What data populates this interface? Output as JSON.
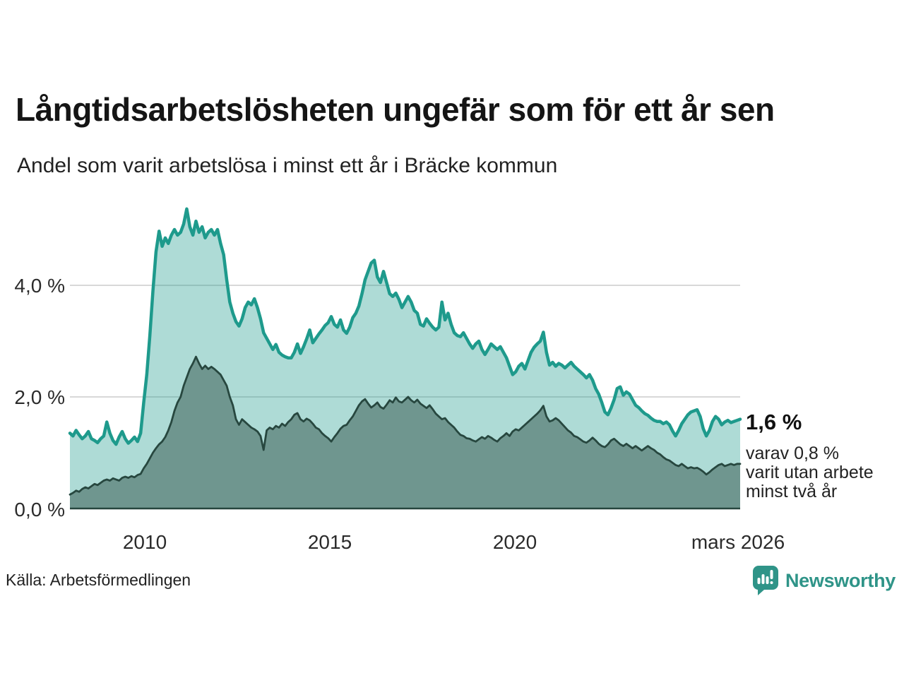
{
  "page": {
    "title": "Långtidsarbetslösheten ungefär som för ett år sen",
    "subtitle": "Andel som varit arbetslösa i minst ett år i Bräcke kommun"
  },
  "annotation": {
    "value_label": "1,6 %",
    "sub_lines": [
      "varav 0,8 %",
      "varit utan arbete",
      "minst två år"
    ]
  },
  "footer": {
    "source": "Källa: Arbetsförmedlingen",
    "brand": "Newsworthy"
  },
  "colors": {
    "line_one_year": "#1e9a8c",
    "fill_one_year": "rgba(30,154,140,0.36)",
    "line_two_year": "#27473f",
    "fill_two_year": "#6f968f",
    "gridline": "#d8d8d8",
    "axis_line": "#27473f",
    "brand_teal": "#2f9488"
  },
  "chart_data": {
    "type": "area",
    "title": "Långtidsarbetslösheten ungefär som för ett år sen",
    "subtitle": "Andel som varit arbetslösa i minst ett år i Bräcke kommun",
    "interval": "monthly",
    "x_start": "2008-01",
    "x_end": "2026-03",
    "ylim": [
      0,
      5.6
    ],
    "grid_values": [
      2.0,
      4.0
    ],
    "y_ticks": [
      {
        "value": 0.0,
        "label": "0,0 %"
      },
      {
        "value": 2.0,
        "label": "2,0 %"
      },
      {
        "value": 4.0,
        "label": "4,0 %"
      }
    ],
    "x_ticks": [
      {
        "year": 2010.0,
        "label": "2010"
      },
      {
        "year": 2015.0,
        "label": "2015"
      },
      {
        "year": 2020.0,
        "label": "2020"
      },
      {
        "year": 2026.17,
        "label": "mars 2026"
      }
    ],
    "legend_position": "end-of-line annotation",
    "grid": true,
    "series": [
      {
        "name": "Andel som varit arbetslösa i minst ett år",
        "end_value_label": "1,6 %",
        "values": [
          1.35,
          1.3,
          1.4,
          1.32,
          1.25,
          1.3,
          1.38,
          1.25,
          1.22,
          1.18,
          1.25,
          1.3,
          1.55,
          1.35,
          1.22,
          1.15,
          1.28,
          1.38,
          1.25,
          1.17,
          1.22,
          1.28,
          1.2,
          1.35,
          1.9,
          2.4,
          3.1,
          3.9,
          4.6,
          4.97,
          4.7,
          4.85,
          4.75,
          4.9,
          5.0,
          4.9,
          4.95,
          5.1,
          5.37,
          5.05,
          4.9,
          5.15,
          4.95,
          5.05,
          4.85,
          4.95,
          5.0,
          4.9,
          5.0,
          4.75,
          4.55,
          4.1,
          3.7,
          3.5,
          3.35,
          3.27,
          3.4,
          3.6,
          3.7,
          3.65,
          3.76,
          3.6,
          3.4,
          3.15,
          3.05,
          2.95,
          2.85,
          2.94,
          2.8,
          2.75,
          2.72,
          2.7,
          2.7,
          2.8,
          2.95,
          2.78,
          2.9,
          3.04,
          3.2,
          2.97,
          3.05,
          3.13,
          3.2,
          3.28,
          3.33,
          3.44,
          3.3,
          3.25,
          3.38,
          3.2,
          3.14,
          3.25,
          3.42,
          3.5,
          3.63,
          3.85,
          4.1,
          4.25,
          4.4,
          4.45,
          4.15,
          4.05,
          4.25,
          4.05,
          3.85,
          3.8,
          3.86,
          3.75,
          3.6,
          3.7,
          3.8,
          3.7,
          3.55,
          3.5,
          3.3,
          3.27,
          3.4,
          3.32,
          3.25,
          3.2,
          3.25,
          3.7,
          3.38,
          3.5,
          3.3,
          3.15,
          3.1,
          3.08,
          3.15,
          3.05,
          2.95,
          2.87,
          2.95,
          3.0,
          2.85,
          2.76,
          2.85,
          2.95,
          2.9,
          2.85,
          2.9,
          2.8,
          2.7,
          2.55,
          2.4,
          2.45,
          2.55,
          2.6,
          2.5,
          2.65,
          2.8,
          2.89,
          2.95,
          3.0,
          3.16,
          2.8,
          2.57,
          2.62,
          2.55,
          2.6,
          2.57,
          2.52,
          2.57,
          2.62,
          2.55,
          2.5,
          2.45,
          2.4,
          2.34,
          2.4,
          2.3,
          2.15,
          2.05,
          1.9,
          1.73,
          1.68,
          1.8,
          1.95,
          2.15,
          2.18,
          2.03,
          2.09,
          2.05,
          1.95,
          1.85,
          1.81,
          1.75,
          1.7,
          1.67,
          1.62,
          1.58,
          1.56,
          1.56,
          1.52,
          1.55,
          1.5,
          1.39,
          1.3,
          1.4,
          1.52,
          1.6,
          1.68,
          1.73,
          1.75,
          1.77,
          1.65,
          1.43,
          1.3,
          1.4,
          1.56,
          1.65,
          1.6,
          1.5,
          1.55,
          1.58,
          1.54,
          1.56,
          1.58,
          1.6
        ]
      },
      {
        "name": "varav varit utan arbete minst två år",
        "end_value_label": "0,8 %",
        "values": [
          0.25,
          0.28,
          0.32,
          0.3,
          0.35,
          0.38,
          0.36,
          0.4,
          0.44,
          0.42,
          0.46,
          0.5,
          0.52,
          0.5,
          0.54,
          0.52,
          0.5,
          0.55,
          0.57,
          0.55,
          0.58,
          0.56,
          0.6,
          0.62,
          0.72,
          0.8,
          0.9,
          1.0,
          1.08,
          1.15,
          1.2,
          1.28,
          1.4,
          1.55,
          1.75,
          1.9,
          2.0,
          2.2,
          2.35,
          2.5,
          2.6,
          2.72,
          2.6,
          2.5,
          2.56,
          2.5,
          2.54,
          2.5,
          2.45,
          2.4,
          2.3,
          2.2,
          2.0,
          1.85,
          1.6,
          1.5,
          1.6,
          1.55,
          1.5,
          1.45,
          1.42,
          1.38,
          1.3,
          1.05,
          1.4,
          1.45,
          1.42,
          1.48,
          1.45,
          1.52,
          1.48,
          1.55,
          1.6,
          1.68,
          1.71,
          1.6,
          1.56,
          1.61,
          1.58,
          1.52,
          1.45,
          1.42,
          1.35,
          1.3,
          1.26,
          1.2,
          1.28,
          1.35,
          1.43,
          1.48,
          1.5,
          1.58,
          1.65,
          1.75,
          1.85,
          1.92,
          1.96,
          1.88,
          1.81,
          1.85,
          1.9,
          1.82,
          1.79,
          1.86,
          1.94,
          1.9,
          1.99,
          1.92,
          1.9,
          1.95,
          2.0,
          1.94,
          1.9,
          1.95,
          1.88,
          1.84,
          1.8,
          1.85,
          1.78,
          1.7,
          1.65,
          1.6,
          1.62,
          1.55,
          1.5,
          1.45,
          1.38,
          1.32,
          1.3,
          1.26,
          1.25,
          1.22,
          1.2,
          1.24,
          1.28,
          1.25,
          1.3,
          1.27,
          1.23,
          1.2,
          1.26,
          1.3,
          1.35,
          1.3,
          1.38,
          1.42,
          1.4,
          1.45,
          1.5,
          1.55,
          1.6,
          1.65,
          1.7,
          1.76,
          1.84,
          1.65,
          1.56,
          1.58,
          1.62,
          1.58,
          1.52,
          1.46,
          1.4,
          1.36,
          1.3,
          1.28,
          1.24,
          1.2,
          1.18,
          1.22,
          1.27,
          1.22,
          1.16,
          1.12,
          1.1,
          1.15,
          1.22,
          1.25,
          1.2,
          1.15,
          1.12,
          1.16,
          1.12,
          1.08,
          1.12,
          1.08,
          1.04,
          1.08,
          1.12,
          1.08,
          1.05,
          1.0,
          0.97,
          0.92,
          0.88,
          0.86,
          0.82,
          0.78,
          0.76,
          0.8,
          0.76,
          0.72,
          0.74,
          0.72,
          0.73,
          0.7,
          0.66,
          0.61,
          0.65,
          0.7,
          0.74,
          0.78,
          0.8,
          0.76,
          0.78,
          0.8,
          0.78,
          0.8,
          0.8
        ]
      }
    ]
  }
}
